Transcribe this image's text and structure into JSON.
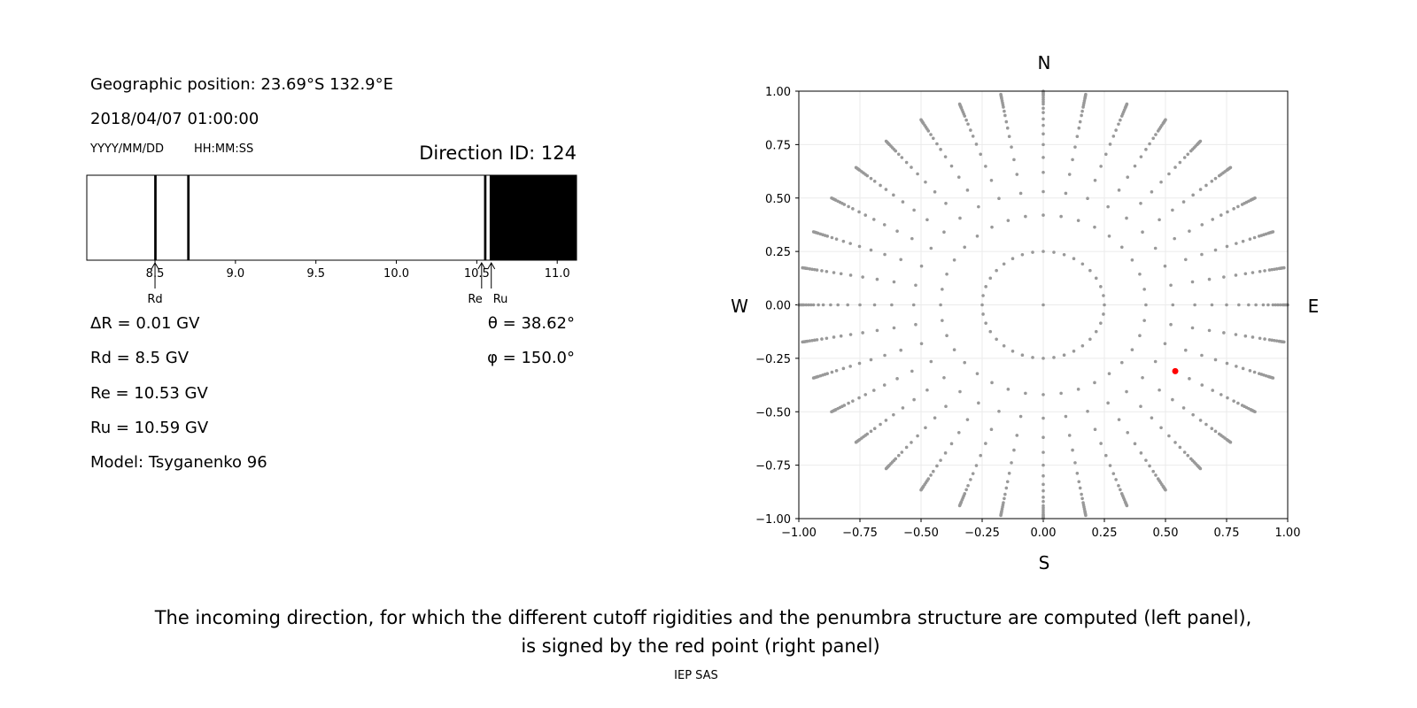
{
  "left_panel": {
    "geo_position": "Geographic position: 23.69°S 132.9°E",
    "datetime": "2018/04/07 01:00:00",
    "date_format": "YYYY/MM/DD",
    "time_format": "HH:MM:SS",
    "direction_id": "Direction ID: 124",
    "delta_r": "ΔR = 0.01 GV",
    "rd": "Rd = 8.5 GV",
    "re": "Re = 10.53 GV",
    "ru": "Ru = 10.59 GV",
    "model": "Model: Tsyganenko 96",
    "theta": "θ = 38.62°",
    "phi": "φ = 150.0°"
  },
  "chart_data": [
    {
      "type": "penumbra-bar",
      "xlim": [
        8.076,
        11.12
      ],
      "xticks": [
        8.5,
        9.0,
        9.5,
        10.0,
        10.5,
        11.0
      ],
      "xtick_labels": [
        "8.5",
        "9.0",
        "9.5",
        "10.0",
        "10.5",
        "11.0"
      ],
      "forbidden_bands": [
        [
          8.495,
          8.51
        ],
        [
          8.7,
          8.715
        ],
        [
          10.545,
          10.56
        ],
        [
          10.58,
          11.12
        ]
      ],
      "markers": [
        {
          "label": "Rd",
          "value": 8.5
        },
        {
          "label": "Re",
          "value": 10.53
        },
        {
          "label": "Ru",
          "value": 10.59
        }
      ],
      "colors": {
        "forbidden": "#000000",
        "allowed": "#ffffff"
      }
    },
    {
      "type": "scatter",
      "xlim": [
        -1.0,
        1.0
      ],
      "ylim": [
        -1.0,
        1.0
      ],
      "xticks": [
        "−1.00",
        "−0.75",
        "−0.50",
        "−0.25",
        "0.00",
        "0.25",
        "0.50",
        "0.75",
        "1.00"
      ],
      "yticks": [
        "1.00",
        "0.75",
        "0.50",
        "0.25",
        "0.00",
        "−0.25",
        "−0.50",
        "−0.75",
        "−1.00"
      ],
      "grid": true,
      "compass": {
        "north": "N",
        "south": "S",
        "west": "W",
        "east": "E"
      },
      "direction_grid": {
        "azimuth_step_deg": 10,
        "inner_ring_radius": 0.25,
        "inner_ring_points": 36,
        "spoke_radii": [
          0.42,
          0.53,
          0.62,
          0.69,
          0.75,
          0.8,
          0.84,
          0.87,
          0.9,
          0.92,
          0.94,
          0.95,
          0.96,
          0.97,
          0.98,
          0.985,
          0.99,
          0.995,
          1.0
        ],
        "center_point": [
          0,
          0
        ],
        "color": "#999999"
      },
      "selected_point": {
        "x": 0.54,
        "y": -0.31,
        "color": "#ff0000"
      }
    }
  ],
  "caption": {
    "line1": "The incoming direction, for which the different cutoff rigidities and the penumbra structure are computed (left panel),",
    "line2": "is signed by the red point (right panel)",
    "credit": "IEP SAS"
  }
}
